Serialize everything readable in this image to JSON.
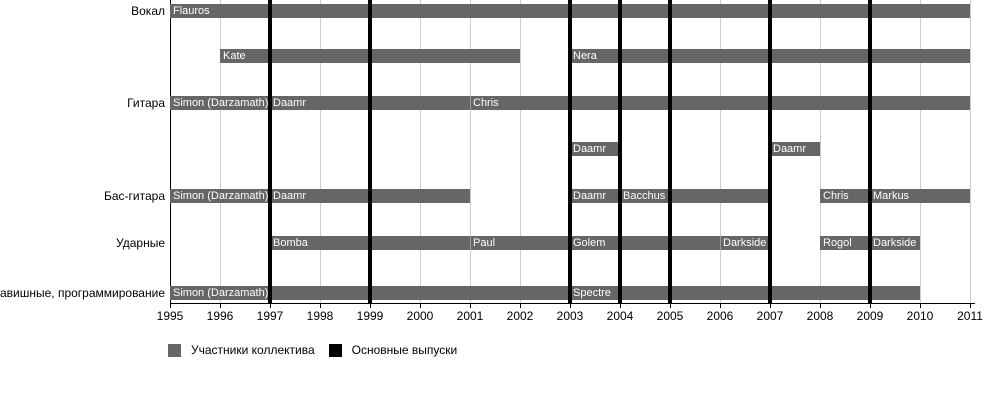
{
  "chart_data": {
    "type": "gantt",
    "title": "",
    "x_axis": {
      "min": 1995,
      "max": 2011,
      "ticks": [
        1995,
        1996,
        1997,
        1998,
        1999,
        2000,
        2001,
        2002,
        2003,
        2004,
        2005,
        2006,
        2007,
        2008,
        2009,
        2010,
        2011
      ]
    },
    "rows": [
      {
        "label": "Вокал",
        "segments": [
          {
            "name": "Flauros",
            "start": 1995,
            "end": 2011
          }
        ]
      },
      {
        "label": "",
        "segments": [
          {
            "name": "Kate",
            "start": 1996,
            "end": 2002
          },
          {
            "name": "Nera",
            "start": 2003,
            "end": 2011
          }
        ]
      },
      {
        "label": "Гитара",
        "segments": [
          {
            "name": "Simon (Darzamath)",
            "start": 1995,
            "end": 1997
          },
          {
            "name": "Daamr",
            "start": 1997,
            "end": 2001
          },
          {
            "name": "Chris",
            "start": 2001,
            "end": 2011
          }
        ]
      },
      {
        "label": "",
        "segments": [
          {
            "name": "Daamr",
            "start": 2003,
            "end": 2004
          },
          {
            "name": "Daamr",
            "start": 2007,
            "end": 2008
          }
        ]
      },
      {
        "label": "Бас-гитара",
        "segments": [
          {
            "name": "Simon (Darzamath)",
            "start": 1995,
            "end": 1997
          },
          {
            "name": "Daamr",
            "start": 1997,
            "end": 2001
          },
          {
            "name": "Daamr",
            "start": 2003,
            "end": 2004
          },
          {
            "name": "Bacchus",
            "start": 2004,
            "end": 2007
          },
          {
            "name": "Chris",
            "start": 2008,
            "end": 2009
          },
          {
            "name": "Markus",
            "start": 2009,
            "end": 2011
          }
        ]
      },
      {
        "label": "Ударные",
        "segments": [
          {
            "name": "Bomba",
            "start": 1997,
            "end": 2001
          },
          {
            "name": "Paul",
            "start": 2001,
            "end": 2003
          },
          {
            "name": "Golem",
            "start": 2003,
            "end": 2006
          },
          {
            "name": "Darkside",
            "start": 2006,
            "end": 2007
          },
          {
            "name": "Rogol",
            "start": 2008,
            "end": 2009
          },
          {
            "name": "Darkside",
            "start": 2009,
            "end": 2010
          }
        ]
      },
      {
        "label": "Клавишные, программирование",
        "segments": [
          {
            "name": "Simon (Darzamath)",
            "start": 1995,
            "end": 2003
          },
          {
            "name": "Spectre",
            "start": 2003,
            "end": 2010
          }
        ]
      }
    ],
    "release_lines": [
      1997,
      1999,
      2003,
      2004,
      2005,
      2007,
      2009
    ],
    "legend": {
      "members": {
        "label": "Участники коллектива",
        "color": "#666666"
      },
      "releases": {
        "label": "Основные выпуски",
        "color": "#000000"
      }
    }
  },
  "colors": {
    "bar": "#666666",
    "bar_text": "#ffffff",
    "grid": "#cccccc",
    "release": "#000000",
    "axis": "#000000",
    "text": "#000000",
    "background": "#ffffff"
  }
}
